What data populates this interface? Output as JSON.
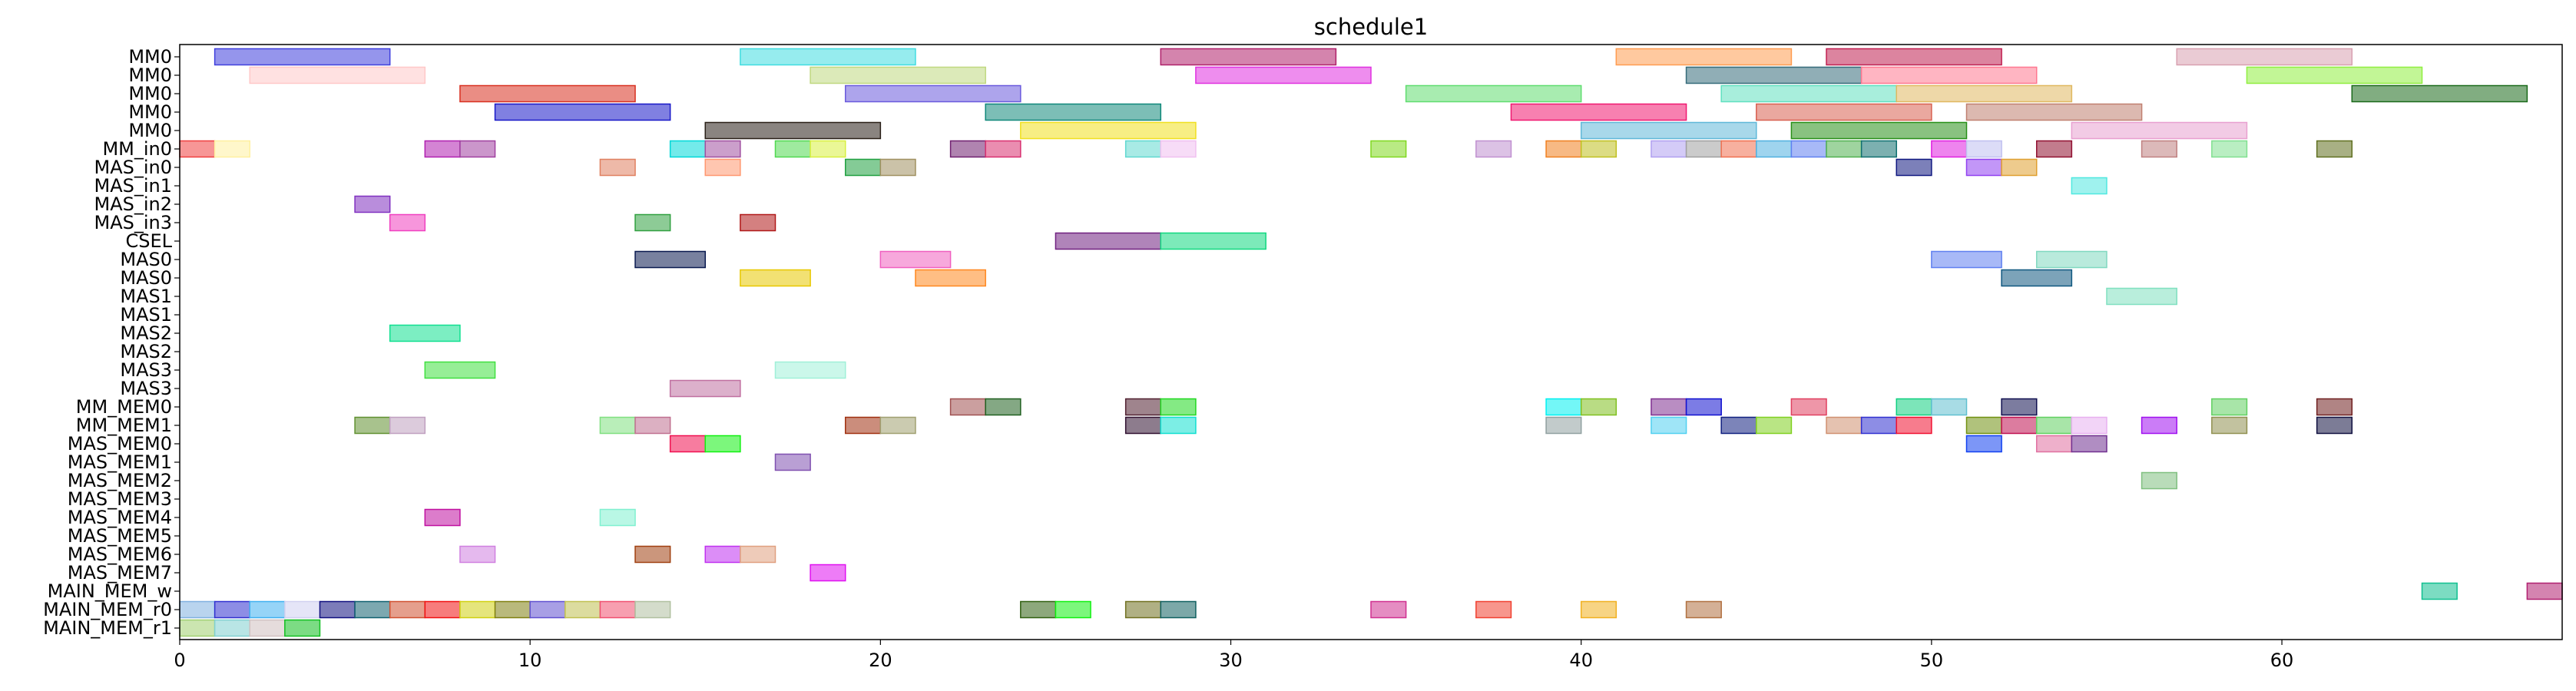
{
  "chart_data": {
    "type": "gantt",
    "title": "schedule1",
    "xlabel": "",
    "ylabel": "",
    "xlim": [
      0,
      68
    ],
    "xticks": [
      0,
      10,
      20,
      30,
      40,
      50,
      60
    ],
    "grid": false,
    "legend": "none",
    "rows": [
      "MM0",
      "MM0",
      "MM0",
      "MM0",
      "MM0",
      "MM_in0",
      "MAS_in0",
      "MAS_in1",
      "MAS_in2",
      "MAS_in3",
      "CSEL",
      "MAS0",
      "MAS0",
      "MAS1",
      "MAS1",
      "MAS2",
      "MAS2",
      "MAS3",
      "MAS3",
      "MM_MEM0",
      "MM_MEM1",
      "MAS_MEM0",
      "MAS_MEM1",
      "MAS_MEM2",
      "MAS_MEM3",
      "MAS_MEM4",
      "MAS_MEM5",
      "MAS_MEM6",
      "MAS_MEM7",
      "MAIN_MEM_w",
      "MAIN_MEM_r0",
      "MAIN_MEM_r1"
    ],
    "tasks": [
      {
        "row": 0,
        "start": 1,
        "end": 6,
        "color": "#3f3fdd"
      },
      {
        "row": 0,
        "start": 16,
        "end": 21,
        "color": "#40dde0"
      },
      {
        "row": 0,
        "start": 28,
        "end": 33,
        "color": "#b0206a"
      },
      {
        "row": 0,
        "start": 41,
        "end": 46,
        "color": "#ff9c50"
      },
      {
        "row": 0,
        "start": 47,
        "end": 52,
        "color": "#c01f50"
      },
      {
        "row": 0,
        "start": 57,
        "end": 62,
        "color": "#d8a0b0"
      },
      {
        "row": 1,
        "start": 2,
        "end": 7,
        "color": "#ffc8c8"
      },
      {
        "row": 1,
        "start": 18,
        "end": 23,
        "color": "#c0d880"
      },
      {
        "row": 1,
        "start": 29,
        "end": 34,
        "color": "#e030e0"
      },
      {
        "row": 1,
        "start": 43,
        "end": 48,
        "color": "#356b7a"
      },
      {
        "row": 1,
        "start": 48,
        "end": 53,
        "color": "#ff7890"
      },
      {
        "row": 1,
        "start": 59,
        "end": 64,
        "color": "#90ee40"
      },
      {
        "row": 2,
        "start": 8,
        "end": 13,
        "color": "#d83020"
      },
      {
        "row": 2,
        "start": 19,
        "end": 24,
        "color": "#6a5add"
      },
      {
        "row": 2,
        "start": 35,
        "end": 40,
        "color": "#60dd70"
      },
      {
        "row": 2,
        "start": 44,
        "end": 49,
        "color": "#60e0c0"
      },
      {
        "row": 2,
        "start": 49,
        "end": 54,
        "color": "#e0b860"
      },
      {
        "row": 2,
        "start": 62,
        "end": 67,
        "color": "#1a6a1a"
      },
      {
        "row": 3,
        "start": 9,
        "end": 14,
        "color": "#1818c8"
      },
      {
        "row": 3,
        "start": 23,
        "end": 28,
        "color": "#10887a"
      },
      {
        "row": 3,
        "start": 38,
        "end": 43,
        "color": "#f01870"
      },
      {
        "row": 3,
        "start": 45,
        "end": 50,
        "color": "#d86050"
      },
      {
        "row": 3,
        "start": 51,
        "end": 56,
        "color": "#c08070"
      },
      {
        "row": 4,
        "start": 15,
        "end": 20,
        "color": "#2a2018"
      },
      {
        "row": 4,
        "start": 24,
        "end": 29,
        "color": "#f0e020"
      },
      {
        "row": 4,
        "start": 40,
        "end": 45,
        "color": "#60b8d8"
      },
      {
        "row": 4,
        "start": 46,
        "end": 51,
        "color": "#289018"
      },
      {
        "row": 4,
        "start": 54,
        "end": 59,
        "color": "#e8a0d0"
      },
      {
        "row": 5,
        "start": 0,
        "end": 1,
        "color": "#f04040"
      },
      {
        "row": 5,
        "start": 1,
        "end": 2,
        "color": "#fff0a0"
      },
      {
        "row": 5,
        "start": 7,
        "end": 8,
        "color": "#b020b0"
      },
      {
        "row": 5,
        "start": 8,
        "end": 9,
        "color": "#a040a0"
      },
      {
        "row": 5,
        "start": 14,
        "end": 15,
        "color": "#00d8d8"
      },
      {
        "row": 5,
        "start": 15,
        "end": 16,
        "color": "#a050a0"
      },
      {
        "row": 5,
        "start": 17,
        "end": 18,
        "color": "#50d850"
      },
      {
        "row": 5,
        "start": 18,
        "end": 19,
        "color": "#d8f040"
      },
      {
        "row": 5,
        "start": 22,
        "end": 23,
        "color": "#702070"
      },
      {
        "row": 5,
        "start": 23,
        "end": 24,
        "color": "#d83070"
      },
      {
        "row": 5,
        "start": 27,
        "end": 28,
        "color": "#60d8d0"
      },
      {
        "row": 5,
        "start": 28,
        "end": 29,
        "color": "#f0c0f0"
      },
      {
        "row": 5,
        "start": 34,
        "end": 35,
        "color": "#80d820"
      },
      {
        "row": 5,
        "start": 37,
        "end": 38,
        "color": "#c090d0"
      },
      {
        "row": 5,
        "start": 39,
        "end": 40,
        "color": "#f08020"
      },
      {
        "row": 5,
        "start": 40,
        "end": 41,
        "color": "#c0c020"
      },
      {
        "row": 5,
        "start": 42,
        "end": 43,
        "color": "#b0a0f0"
      },
      {
        "row": 5,
        "start": 43,
        "end": 44,
        "color": "#a0a0a0"
      },
      {
        "row": 5,
        "start": 44,
        "end": 45,
        "color": "#f07050"
      },
      {
        "row": 5,
        "start": 45,
        "end": 46,
        "color": "#50b0e0"
      },
      {
        "row": 5,
        "start": 46,
        "end": 47,
        "color": "#6080f0"
      },
      {
        "row": 5,
        "start": 47,
        "end": 48,
        "color": "#50b050"
      },
      {
        "row": 5,
        "start": 48,
        "end": 49,
        "color": "#107070"
      },
      {
        "row": 5,
        "start": 50,
        "end": 51,
        "color": "#e020e0"
      },
      {
        "row": 5,
        "start": 51,
        "end": 52,
        "color": "#c0c0f0"
      },
      {
        "row": 5,
        "start": 53,
        "end": 54,
        "color": "#901030"
      },
      {
        "row": 5,
        "start": 56,
        "end": 57,
        "color": "#c08080"
      },
      {
        "row": 5,
        "start": 58,
        "end": 59,
        "color": "#80e090"
      },
      {
        "row": 5,
        "start": 61,
        "end": 62,
        "color": "#607020"
      },
      {
        "row": 6,
        "start": 12,
        "end": 13,
        "color": "#e08060"
      },
      {
        "row": 6,
        "start": 15,
        "end": 16,
        "color": "#ff9870"
      },
      {
        "row": 6,
        "start": 19,
        "end": 20,
        "color": "#20a040"
      },
      {
        "row": 6,
        "start": 20,
        "end": 21,
        "color": "#a09060"
      },
      {
        "row": 6,
        "start": 49,
        "end": 50,
        "color": "#101880"
      },
      {
        "row": 6,
        "start": 51,
        "end": 52,
        "color": "#9040f0"
      },
      {
        "row": 6,
        "start": 52,
        "end": 53,
        "color": "#e0a030"
      },
      {
        "row": 7,
        "start": 54,
        "end": 55,
        "color": "#50e8e0"
      },
      {
        "row": 8,
        "start": 5,
        "end": 6,
        "color": "#8030c0"
      },
      {
        "row": 9,
        "start": 6,
        "end": 7,
        "color": "#f040c0"
      },
      {
        "row": 9,
        "start": 13,
        "end": 14,
        "color": "#30a040"
      },
      {
        "row": 9,
        "start": 16,
        "end": 17,
        "color": "#b01818"
      },
      {
        "row": 10,
        "start": 25,
        "end": 28,
        "color": "#702080"
      },
      {
        "row": 10,
        "start": 28,
        "end": 31,
        "color": "#10d880"
      },
      {
        "row": 11,
        "start": 13,
        "end": 15,
        "color": "#0a1a50"
      },
      {
        "row": 11,
        "start": 20,
        "end": 22,
        "color": "#f060c0"
      },
      {
        "row": 11,
        "start": 50,
        "end": 52,
        "color": "#6080f0"
      },
      {
        "row": 11,
        "start": 53,
        "end": 55,
        "color": "#80d8c0"
      },
      {
        "row": 12,
        "start": 16,
        "end": 18,
        "color": "#e8c800"
      },
      {
        "row": 12,
        "start": 21,
        "end": 23,
        "color": "#ff8820"
      },
      {
        "row": 12,
        "start": 52,
        "end": 54,
        "color": "#105880"
      },
      {
        "row": 13,
        "start": 55,
        "end": 57,
        "color": "#80e0c0"
      },
      {
        "row": 15,
        "start": 6,
        "end": 8,
        "color": "#10e090"
      },
      {
        "row": 17,
        "start": 7,
        "end": 9,
        "color": "#40e040"
      },
      {
        "row": 17,
        "start": 17,
        "end": 19,
        "color": "#a0f0d8"
      },
      {
        "row": 18,
        "start": 14,
        "end": 16,
        "color": "#c070a0"
      },
      {
        "row": 19,
        "start": 22,
        "end": 23,
        "color": "#a05050"
      },
      {
        "row": 19,
        "start": 23,
        "end": 24,
        "color": "#206020"
      },
      {
        "row": 19,
        "start": 27,
        "end": 28,
        "color": "#502030"
      },
      {
        "row": 19,
        "start": 28,
        "end": 29,
        "color": "#20d820"
      },
      {
        "row": 19,
        "start": 39,
        "end": 40,
        "color": "#00f0f0"
      },
      {
        "row": 19,
        "start": 40,
        "end": 41,
        "color": "#80c020"
      },
      {
        "row": 19,
        "start": 42,
        "end": 43,
        "color": "#803090"
      },
      {
        "row": 19,
        "start": 43,
        "end": 44,
        "color": "#1010d0"
      },
      {
        "row": 19,
        "start": 46,
        "end": 47,
        "color": "#e04060"
      },
      {
        "row": 19,
        "start": 49,
        "end": 50,
        "color": "#10d080"
      },
      {
        "row": 19,
        "start": 50,
        "end": 51,
        "color": "#60c0d0"
      },
      {
        "row": 19,
        "start": 52,
        "end": 53,
        "color": "#101050"
      },
      {
        "row": 19,
        "start": 58,
        "end": 59,
        "color": "#60d060"
      },
      {
        "row": 19,
        "start": 61,
        "end": 62,
        "color": "#702020"
      },
      {
        "row": 20,
        "start": 5,
        "end": 6,
        "color": "#609030"
      },
      {
        "row": 20,
        "start": 6,
        "end": 7,
        "color": "#c0a0c0"
      },
      {
        "row": 20,
        "start": 12,
        "end": 13,
        "color": "#80e080"
      },
      {
        "row": 20,
        "start": 13,
        "end": 14,
        "color": "#c07090"
      },
      {
        "row": 20,
        "start": 19,
        "end": 20,
        "color": "#a03010"
      },
      {
        "row": 20,
        "start": 20,
        "end": 21,
        "color": "#a0a070"
      },
      {
        "row": 20,
        "start": 27,
        "end": 28,
        "color": "#301030"
      },
      {
        "row": 20,
        "start": 28,
        "end": 29,
        "color": "#10e0d0"
      },
      {
        "row": 20,
        "start": 39,
        "end": 40,
        "color": "#90a0a0"
      },
      {
        "row": 20,
        "start": 42,
        "end": 43,
        "color": "#50d0f0"
      },
      {
        "row": 20,
        "start": 44,
        "end": 45,
        "color": "#102080"
      },
      {
        "row": 20,
        "start": 45,
        "end": 46,
        "color": "#80d020"
      },
      {
        "row": 20,
        "start": 47,
        "end": 48,
        "color": "#d09070"
      },
      {
        "row": 20,
        "start": 48,
        "end": 49,
        "color": "#3030d0"
      },
      {
        "row": 20,
        "start": 49,
        "end": 50,
        "color": "#f01030"
      },
      {
        "row": 20,
        "start": 51,
        "end": 52,
        "color": "#709010"
      },
      {
        "row": 20,
        "start": 52,
        "end": 53,
        "color": "#c01050"
      },
      {
        "row": 20,
        "start": 53,
        "end": 54,
        "color": "#60d060"
      },
      {
        "row": 20,
        "start": 54,
        "end": 55,
        "color": "#e8b0f0"
      },
      {
        "row": 20,
        "start": 56,
        "end": 57,
        "color": "#a010f0"
      },
      {
        "row": 20,
        "start": 58,
        "end": 59,
        "color": "#909050"
      },
      {
        "row": 20,
        "start": 61,
        "end": 62,
        "color": "#101040"
      },
      {
        "row": 21,
        "start": 14,
        "end": 15,
        "color": "#f01050"
      },
      {
        "row": 21,
        "start": 15,
        "end": 16,
        "color": "#10f010"
      },
      {
        "row": 21,
        "start": 51,
        "end": 52,
        "color": "#1040f0"
      },
      {
        "row": 21,
        "start": 53,
        "end": 54,
        "color": "#e070a0"
      },
      {
        "row": 21,
        "start": 54,
        "end": 55,
        "color": "#703090"
      },
      {
        "row": 22,
        "start": 17,
        "end": 18,
        "color": "#8050b0"
      },
      {
        "row": 23,
        "start": 56,
        "end": 57,
        "color": "#80c080"
      },
      {
        "row": 25,
        "start": 7,
        "end": 8,
        "color": "#c010a0"
      },
      {
        "row": 25,
        "start": 12,
        "end": 13,
        "color": "#80f0d0"
      },
      {
        "row": 27,
        "start": 8,
        "end": 9,
        "color": "#d080e0"
      },
      {
        "row": 27,
        "start": 13,
        "end": 14,
        "color": "#a04010"
      },
      {
        "row": 27,
        "start": 15,
        "end": 16,
        "color": "#c030f0"
      },
      {
        "row": 27,
        "start": 16,
        "end": 17,
        "color": "#e0a080"
      },
      {
        "row": 28,
        "start": 18,
        "end": 19,
        "color": "#e010f0"
      },
      {
        "row": 29,
        "start": 64,
        "end": 65,
        "color": "#10c090"
      },
      {
        "row": 29,
        "start": 67,
        "end": 68,
        "color": "#b02070"
      },
      {
        "row": 30,
        "start": 0,
        "end": 1,
        "color": "#80b0e0"
      },
      {
        "row": 30,
        "start": 1,
        "end": 2,
        "color": "#3030d0"
      },
      {
        "row": 30,
        "start": 2,
        "end": 3,
        "color": "#40b0f0"
      },
      {
        "row": 30,
        "start": 3,
        "end": 4,
        "color": "#d0d0f0"
      },
      {
        "row": 30,
        "start": 4,
        "end": 5,
        "color": "#101080"
      },
      {
        "row": 30,
        "start": 5,
        "end": 6,
        "color": "#106070"
      },
      {
        "row": 30,
        "start": 6,
        "end": 7,
        "color": "#d05030"
      },
      {
        "row": 30,
        "start": 7,
        "end": 8,
        "color": "#f01010"
      },
      {
        "row": 30,
        "start": 8,
        "end": 9,
        "color": "#d0d010"
      },
      {
        "row": 30,
        "start": 9,
        "end": 10,
        "color": "#808010"
      },
      {
        "row": 30,
        "start": 10,
        "end": 11,
        "color": "#6050d0"
      },
      {
        "row": 30,
        "start": 11,
        "end": 12,
        "color": "#c0c050"
      },
      {
        "row": 30,
        "start": 12,
        "end": 13,
        "color": "#f05070"
      },
      {
        "row": 30,
        "start": 13,
        "end": 14,
        "color": "#b0c0a0"
      },
      {
        "row": 30,
        "start": 24,
        "end": 25,
        "color": "#306010"
      },
      {
        "row": 30,
        "start": 25,
        "end": 26,
        "color": "#10f010"
      },
      {
        "row": 30,
        "start": 27,
        "end": 28,
        "color": "#707020"
      },
      {
        "row": 30,
        "start": 28,
        "end": 29,
        "color": "#106060"
      },
      {
        "row": 30,
        "start": 34,
        "end": 35,
        "color": "#d03090"
      },
      {
        "row": 30,
        "start": 37,
        "end": 38,
        "color": "#f04030"
      },
      {
        "row": 30,
        "start": 40,
        "end": 41,
        "color": "#f0b020"
      },
      {
        "row": 30,
        "start": 43,
        "end": 44,
        "color": "#b07040"
      },
      {
        "row": 31,
        "start": 0,
        "end": 1,
        "color": "#a0d070"
      },
      {
        "row": 31,
        "start": 1,
        "end": 2,
        "color": "#80d0d0"
      },
      {
        "row": 31,
        "start": 2,
        "end": 3,
        "color": "#d0c0c0"
      },
      {
        "row": 31,
        "start": 3,
        "end": 4,
        "color": "#10c020"
      }
    ]
  }
}
